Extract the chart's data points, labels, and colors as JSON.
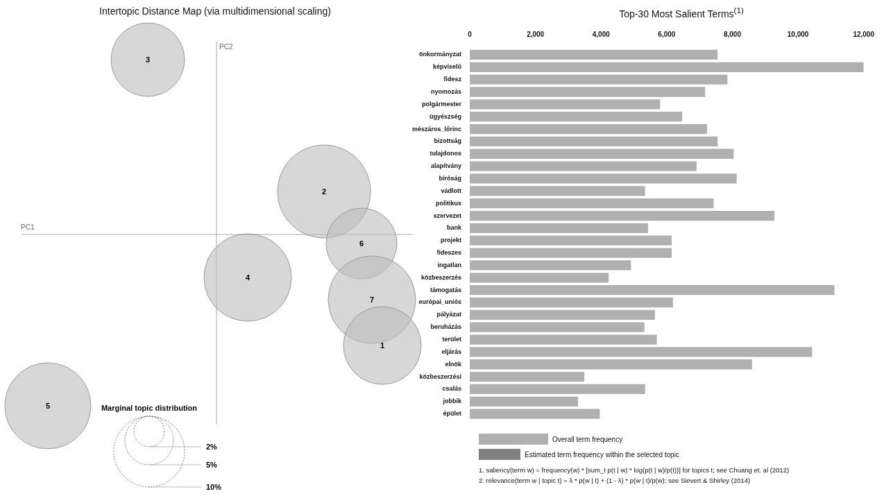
{
  "chart_data": [
    {
      "type": "other",
      "title": "Intertopic Distance Map (via multidimensional scaling)",
      "xlabel": "PC1",
      "ylabel": "PC2",
      "legend_title": "Marginal topic distribution",
      "annotations": [
        "3",
        "2",
        "6",
        "4",
        "7",
        "1",
        "5",
        "2%",
        "5%",
        "10%"
      ]
    },
    {
      "type": "bar",
      "orientation": "horizontal",
      "title": "Top-30 Most Salient Terms$^{(1)}$",
      "categories": [
        "önkormányzat",
        "képviselő",
        "fidesz",
        "nyomozás",
        "polgármester",
        "ügyészség",
        "mészáros_lőrinc",
        "bizottság",
        "tulajdonos",
        "alapítvány",
        "bíróság",
        "vádlott",
        "politikus",
        "szervezet",
        "bank",
        "projekt",
        "fideszes",
        "ingatlan",
        "közbeszerzés",
        "támogatás",
        "európai_uniós",
        "pályázat",
        "beruházás",
        "terület",
        "eljárás",
        "elnök",
        "közbeszerzési",
        "csalás",
        "jobbik",
        "épület"
      ],
      "series": [
        {
          "name": "Overall term frequency",
          "color": "#b0b0b0",
          "values": [
            7550,
            12000,
            7850,
            7170,
            5800,
            6470,
            7230,
            7550,
            8040,
            6910,
            8130,
            5340,
            7430,
            9280,
            5430,
            6150,
            6150,
            4910,
            4230,
            11110,
            6190,
            5640,
            5320,
            5700,
            10430,
            8600,
            3490,
            5340,
            3300,
            3960
          ]
        }
      ],
      "xlim": [
        0,
        12000
      ],
      "xticks": [
        0,
        {
          "value": 2000,
          "label": "2,000"
        },
        {
          "value": 4000,
          "label": "4,000"
        },
        {
          "value": 6000,
          "label": "6,000"
        },
        {
          "value": 8000,
          "label": "8,000"
        },
        {
          "value": 10000,
          "label": "10,000"
        },
        {
          "value": 12000,
          "label": "12,000"
        }
      ],
      "legend": "bottom",
      "annotations": [
        "Estimated term frequency within the selected topic",
        "1. saliency(term w) = frequency(w) * [sum_t p(t | w) * log(p(t | w)/p(t))] for topics t; see Chuang et. al (2012)",
        "2. relevance(term w | topic t) = λ * p(w | t) + (1 - λ) * p(w | t)/p(w); see Sievert & Shirley (2014)"
      ]
    }
  ]
}
